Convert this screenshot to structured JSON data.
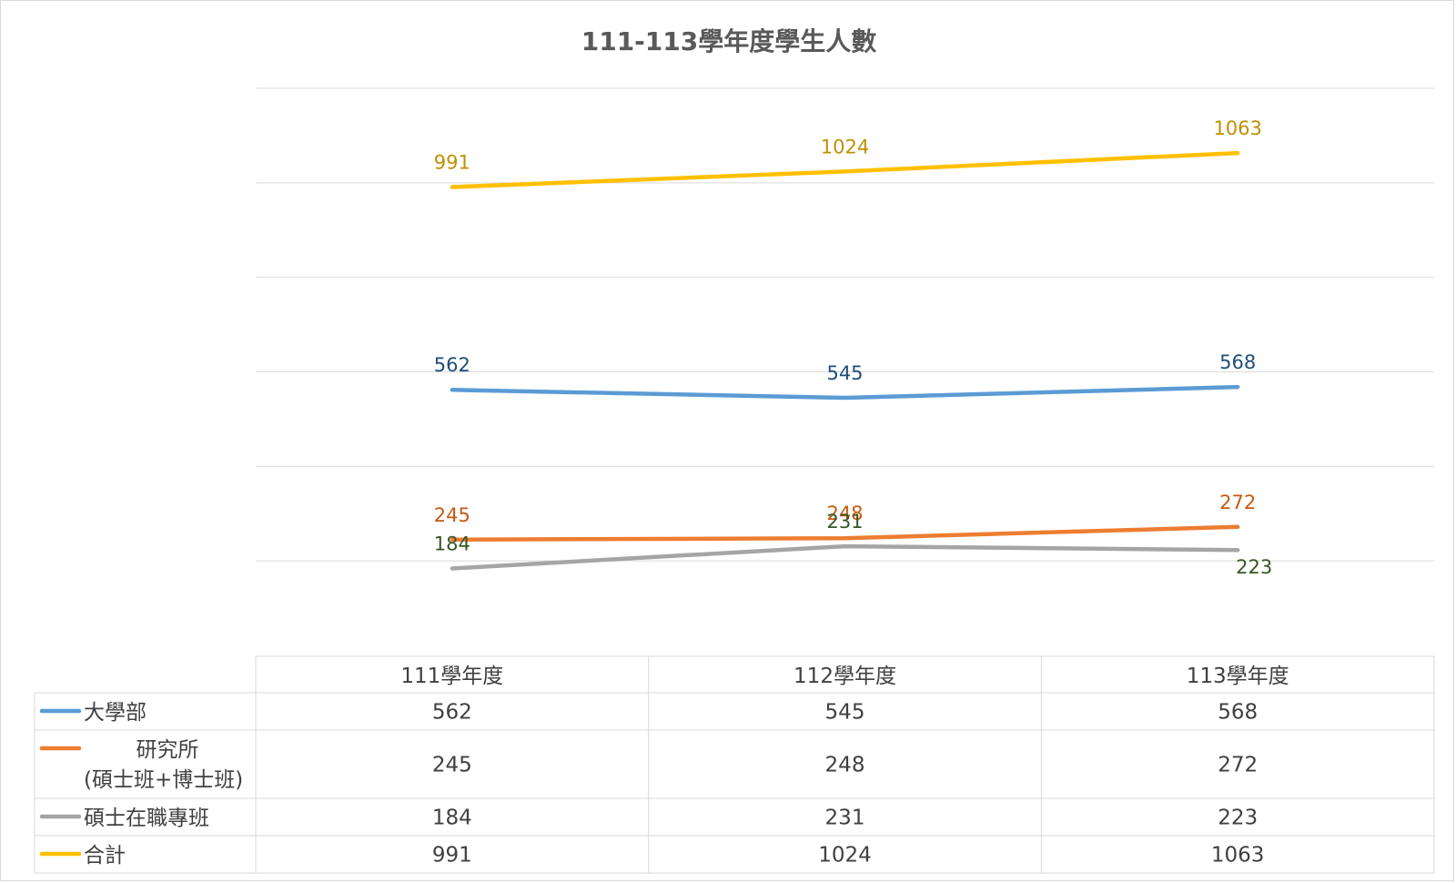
{
  "chart_data": {
    "type": "line",
    "title": "111-113學年度學生人數",
    "categories": [
      "111學年度",
      "112學年度",
      "113學年度"
    ],
    "ylim": [
      0,
      1200
    ],
    "grid": true,
    "legend": "data-table-bottom",
    "series": [
      {
        "name": "大學部",
        "name_lines": [
          "大學部"
        ],
        "values": [
          562,
          545,
          568
        ],
        "color": "#5b9bd5",
        "label_color": "#1f4e79",
        "label_pos": [
          "above",
          "above",
          "above"
        ]
      },
      {
        "name": "研究所(碩士班+博士班)",
        "name_lines": [
          "研究所",
          "(碩士班+博士班)"
        ],
        "values": [
          245,
          248,
          272
        ],
        "color": "#ed7d31",
        "label_color": "#c55a11",
        "label_pos": [
          "above",
          "above",
          "above"
        ]
      },
      {
        "name": "碩士在職專班",
        "name_lines": [
          "碩士在職專班"
        ],
        "values": [
          184,
          231,
          223
        ],
        "color": "#a5a5a5",
        "label_color": "#375623",
        "label_pos": [
          "above",
          "above",
          "below"
        ]
      },
      {
        "name": "合計",
        "name_lines": [
          "合計"
        ],
        "values": [
          991,
          1024,
          1063
        ],
        "color": "#ffc000",
        "label_color": "#bf9000",
        "label_pos": [
          "above",
          "above",
          "above"
        ]
      }
    ]
  }
}
